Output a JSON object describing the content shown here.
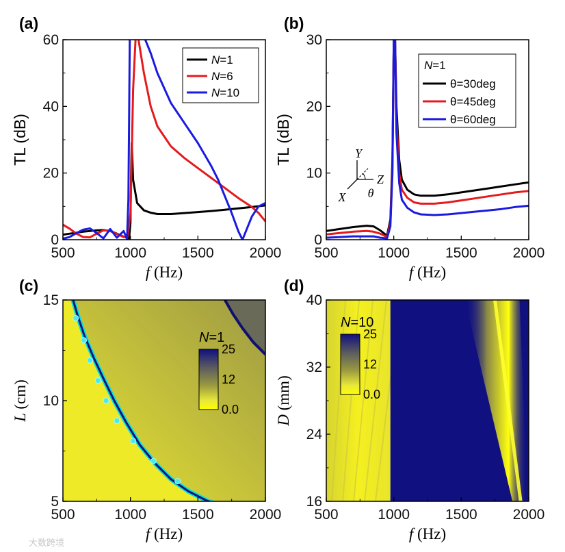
{
  "chart_data": [
    {
      "panel": "(a)",
      "type": "line",
      "xlabel_symbol": "f",
      "xlabel_unit": "(Hz)",
      "ylabel": "TL (dB)",
      "xlim": [
        500,
        2000
      ],
      "ylim": [
        0,
        60
      ],
      "xticks": [
        500,
        1000,
        1500,
        2000
      ],
      "yticks": [
        0,
        20,
        40,
        60
      ],
      "legend_position": "top-right",
      "series": [
        {
          "name": "N=1",
          "legend_symbol": "N",
          "legend_value": "=1",
          "color": "#000000",
          "x": [
            500,
            550,
            600,
            650,
            700,
            750,
            800,
            850,
            900,
            950,
            990,
            1000,
            1005,
            1010,
            1020,
            1050,
            1100,
            1150,
            1200,
            1300,
            1400,
            1500,
            1600,
            1700,
            1800,
            1900,
            2000
          ],
          "y": [
            1.5,
            1.8,
            2.1,
            2.4,
            2.6,
            2.8,
            2.9,
            2.6,
            1.8,
            0.9,
            0.4,
            5,
            20,
            29,
            18,
            11,
            8.8,
            8.1,
            7.7,
            7.7,
            8.0,
            8.3,
            8.6,
            9.0,
            9.4,
            9.8,
            10.3
          ]
        },
        {
          "name": "N=6",
          "legend_symbol": "N",
          "legend_value": "=6",
          "color": "#e41a1c",
          "x": [
            500,
            550,
            600,
            650,
            700,
            750,
            800,
            850,
            900,
            950,
            980,
            1000,
            1010,
            1020,
            1040,
            1060,
            1100,
            1150,
            1200,
            1300,
            1400,
            1500,
            1600,
            1700,
            1800,
            1900,
            1950,
            2000
          ],
          "y": [
            4.5,
            3.3,
            1.8,
            0.8,
            0.7,
            1.8,
            2.8,
            2.7,
            1.7,
            0.8,
            1.0,
            8,
            25,
            45,
            62,
            60,
            50,
            40,
            34,
            28,
            24.5,
            21.5,
            18.5,
            15.5,
            12.5,
            9.8,
            8.0,
            5.5
          ]
        },
        {
          "name": "N=10",
          "legend_symbol": "N",
          "legend_value": "=10",
          "color": "#1a1ae0",
          "x": [
            500,
            550,
            600,
            650,
            700,
            750,
            800,
            850,
            900,
            950,
            975,
            985,
            990,
            995,
            1000,
            1010,
            1050,
            1100,
            1150,
            1200,
            1300,
            1400,
            1500,
            1600,
            1650,
            1700,
            1750,
            1800,
            1830,
            1860,
            1900,
            1950,
            2000
          ],
          "y": [
            0.3,
            0.8,
            2.0,
            3.0,
            3.4,
            2.0,
            0.4,
            3.2,
            0.6,
            2.6,
            0.2,
            12,
            35,
            60,
            62,
            62,
            62,
            61,
            56,
            50,
            41,
            35,
            29,
            22,
            18,
            13,
            8,
            2.5,
            0,
            3,
            7,
            10,
            11
          ]
        }
      ]
    },
    {
      "panel": "(b)",
      "type": "line",
      "xlabel_symbol": "f",
      "xlabel_unit": "(Hz)",
      "ylabel": "TL (dB)",
      "xlim": [
        500,
        2000
      ],
      "ylim": [
        0,
        30
      ],
      "xticks": [
        500,
        1000,
        1500,
        2000
      ],
      "yticks": [
        0,
        10,
        20,
        30
      ],
      "legend_title_symbol": "N",
      "legend_title_value": "=1",
      "legend_position": "top-right",
      "inset_axes": [
        "Y",
        "Z",
        "X",
        "θ"
      ],
      "series": [
        {
          "name": "θ=30deg",
          "color": "#000000",
          "x": [
            500,
            600,
            700,
            800,
            850,
            900,
            950,
            975,
            990,
            1000,
            1010,
            1020,
            1040,
            1060,
            1100,
            1150,
            1200,
            1300,
            1400,
            1500,
            1600,
            1700,
            1800,
            1900,
            2000
          ],
          "y": [
            1.3,
            1.6,
            1.9,
            2.1,
            2.0,
            1.4,
            0.6,
            3,
            12,
            30,
            30,
            20,
            12,
            9,
            7.5,
            6.8,
            6.6,
            6.6,
            6.8,
            7.1,
            7.4,
            7.7,
            8.0,
            8.3,
            8.6
          ]
        },
        {
          "name": "θ=45deg",
          "color": "#e41a1c",
          "x": [
            500,
            600,
            700,
            800,
            850,
            900,
            950,
            975,
            990,
            1000,
            1010,
            1020,
            1040,
            1060,
            1100,
            1150,
            1200,
            1300,
            1400,
            1500,
            1600,
            1700,
            1800,
            1900,
            2000
          ],
          "y": [
            0.8,
            1.0,
            1.2,
            1.3,
            1.2,
            0.9,
            0.4,
            2.5,
            11,
            30,
            30,
            18,
            10,
            7.5,
            6.3,
            5.6,
            5.4,
            5.4,
            5.6,
            5.9,
            6.2,
            6.5,
            6.8,
            7.1,
            7.3
          ]
        },
        {
          "name": "θ=60deg",
          "color": "#1a1ae0",
          "x": [
            500,
            600,
            700,
            800,
            850,
            900,
            950,
            975,
            990,
            1000,
            1010,
            1020,
            1040,
            1060,
            1100,
            1150,
            1200,
            1300,
            1400,
            1500,
            1600,
            1700,
            1800,
            1900,
            2000
          ],
          "y": [
            0.3,
            0.4,
            0.5,
            0.5,
            0.5,
            0.3,
            0.2,
            2.0,
            10,
            30,
            30,
            16,
            8.5,
            6.0,
            4.8,
            4.1,
            3.8,
            3.7,
            3.8,
            4.0,
            4.2,
            4.4,
            4.6,
            4.9,
            5.1
          ]
        }
      ]
    },
    {
      "panel": "(c)",
      "type": "heatmap",
      "xlabel_symbol": "f",
      "xlabel_unit": "(Hz)",
      "ylabel_symbol": "L",
      "ylabel_unit": "(cm)",
      "xlim": [
        500,
        2000
      ],
      "ylim": [
        5,
        15
      ],
      "xticks": [
        500,
        1000,
        1500,
        2000
      ],
      "yticks": [
        5,
        10,
        15
      ],
      "colorbar_title_symbol": "N",
      "colorbar_title_value": "=1",
      "colorbar_ticks": [
        "25",
        "12",
        "0.0"
      ],
      "colorbar_colors": [
        "#101080",
        "#5a5a60",
        "#9a9a40",
        "#e8e83a",
        "#ffff00"
      ],
      "resonance_curve": {
        "x": [
          575,
          610,
          660,
          730,
          800,
          880,
          970,
          1070,
          1180,
          1300,
          1430,
          1560,
          1620
        ],
        "y": [
          15,
          14.2,
          13.2,
          12.1,
          11.1,
          10.0,
          8.9,
          7.8,
          6.9,
          6.1,
          5.5,
          5.05,
          4.9
        ]
      },
      "marker_points": {
        "x": [
          595,
          655,
          700,
          760,
          820,
          900,
          1020,
          1170,
          1350
        ],
        "y": [
          14.1,
          13.0,
          12.0,
          11.0,
          10.0,
          9.0,
          8.0,
          7.0,
          6.0
        ]
      },
      "upper_band": {
        "x": [
          1700,
          1760,
          1830,
          1910,
          2000
        ],
        "y": [
          15,
          14.3,
          13.6,
          12.9,
          12.3
        ]
      }
    },
    {
      "panel": "(d)",
      "type": "heatmap",
      "xlabel_symbol": "f",
      "xlabel_unit": "(Hz)",
      "ylabel_symbol": "D",
      "ylabel_unit": "(mm)",
      "xlim": [
        500,
        2000
      ],
      "ylim": [
        16,
        40
      ],
      "xticks": [
        500,
        1000,
        1500,
        2000
      ],
      "yticks": [
        16,
        24,
        32,
        40
      ],
      "colorbar_title_symbol": "N",
      "colorbar_title_value": "=10",
      "colorbar_ticks": [
        "25",
        "12",
        "0.0"
      ],
      "colorbar_colors": [
        "#101080",
        "#5a5a60",
        "#9a9a40",
        "#e8e83a",
        "#ffff00"
      ],
      "high_region_start_hz": 975,
      "dip_band": {
        "x_top": 1780,
        "x_bottom": 1950
      }
    }
  ],
  "panel_labels": [
    "(a)",
    "(b)",
    "(c)",
    "(d)"
  ],
  "watermark": "大数跨境"
}
